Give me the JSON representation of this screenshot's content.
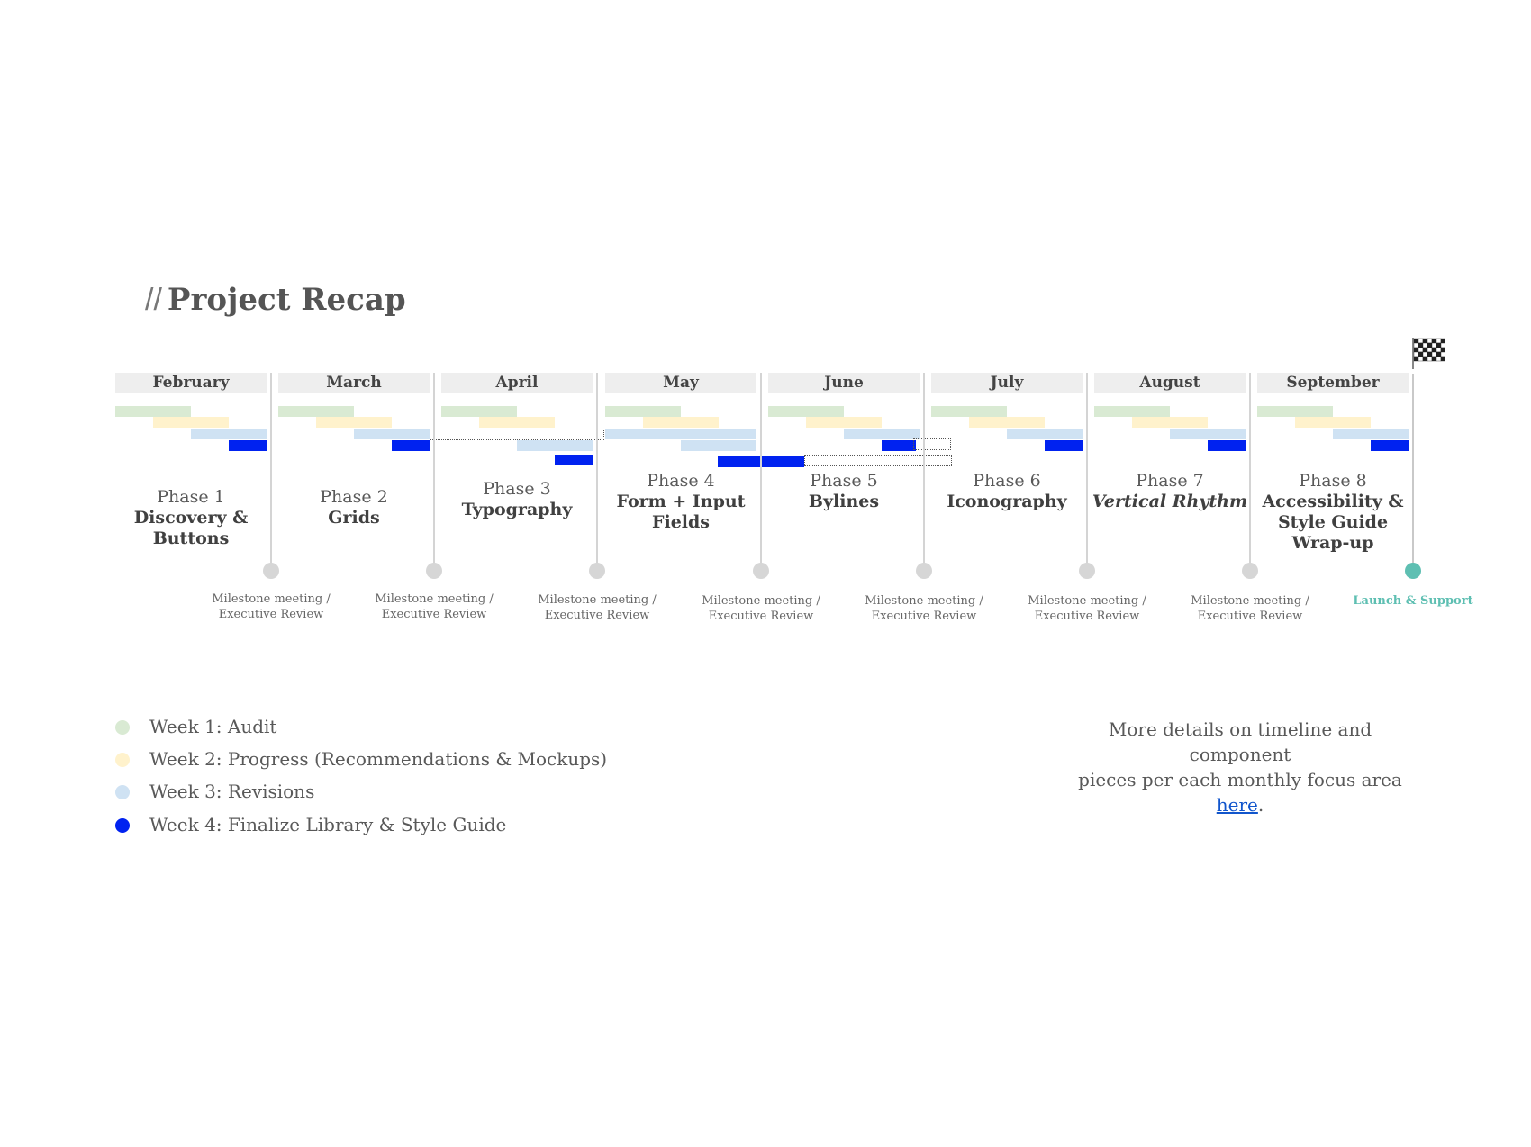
{
  "title": {
    "prefix": "//",
    "text": "Project Recap"
  },
  "colors": {
    "week1": "#d9ead3",
    "week2": "#fff2cc",
    "week3": "#cfe2f3",
    "week4": "#0022f0",
    "header_bg": "#eeeeee",
    "divider": "#d4d4d4",
    "milestone_dot": "#d6d6d6",
    "launch": "#5ebfb2",
    "link": "#1155cc"
  },
  "months": [
    "February",
    "March",
    "April",
    "May",
    "June",
    "July",
    "August",
    "September"
  ],
  "phases": [
    {
      "number": "Phase 1",
      "name": "Discovery & Buttons",
      "italic": false
    },
    {
      "number": "Phase 2",
      "name": "Grids",
      "italic": false
    },
    {
      "number": "Phase 3",
      "name": "Typography",
      "italic": false
    },
    {
      "number": "Phase 4",
      "name": "Form + Input Fields",
      "italic": false
    },
    {
      "number": "Phase 5",
      "name": "Bylines",
      "italic": false
    },
    {
      "number": "Phase 6",
      "name": "Iconography",
      "italic": false
    },
    {
      "number": "Phase 7",
      "name": "Vertical Rhythm",
      "italic": true
    },
    {
      "number": "Phase 8",
      "name": "Accessibility & Style Guide Wrap-up",
      "italic": false
    }
  ],
  "milestones": [
    {
      "line1": "Milestone meeting /",
      "line2": "Executive Review"
    },
    {
      "line1": "Milestone meeting /",
      "line2": "Executive Review"
    },
    {
      "line1": "Milestone meeting /",
      "line2": "Executive Review"
    },
    {
      "line1": "Milestone meeting /",
      "line2": "Executive Review"
    },
    {
      "line1": "Milestone meeting /",
      "line2": "Executive Review"
    },
    {
      "line1": "Milestone meeting /",
      "line2": "Executive Review"
    },
    {
      "line1": "Milestone meeting /",
      "line2": "Executive Review"
    }
  ],
  "launch": {
    "label": "Launch & Support",
    "icon": "checkered-flag-icon"
  },
  "legend": [
    {
      "label": "Week 1: Audit",
      "color": "#d9ead3"
    },
    {
      "label": "Week 2: Progress (Recommendations & Mockups)",
      "color": "#fff2cc"
    },
    {
      "label": "Week 3: Revisions",
      "color": "#cfe2f3"
    },
    {
      "label": "Week 4: Finalize Library & Style Guide",
      "color": "#0022f0"
    }
  ],
  "details": {
    "line1": "More details on timeline and component",
    "line2_prefix": "pieces per each monthly focus area ",
    "link_text": "here",
    "suffix": "."
  }
}
